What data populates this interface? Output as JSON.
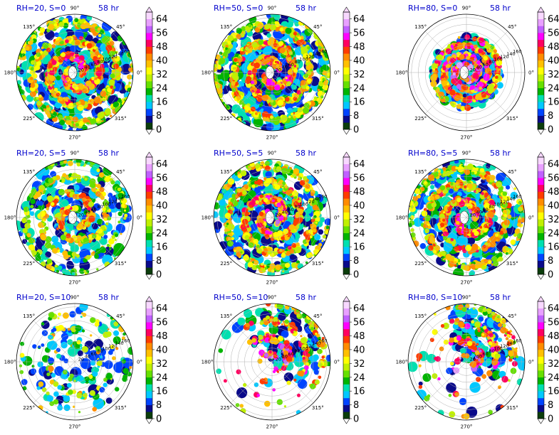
{
  "chart_data": {
    "type": "heatmap",
    "projection": "polar",
    "layout": "3x3 grid of panels",
    "time_label": "58 hr",
    "angle_ticks": [
      "0°",
      "45°",
      "90°",
      "135°",
      "180°",
      "225°",
      "270°",
      "315°"
    ],
    "radial_ticks": [
      20,
      40,
      60,
      80,
      100,
      120,
      140,
      160
    ],
    "radial_max": 170,
    "grid": true,
    "colorbar": {
      "ticks": [
        0,
        8,
        16,
        24,
        32,
        40,
        48,
        56,
        64
      ],
      "min": 0,
      "max": 68,
      "extend": "both",
      "colors": [
        "#0b3d0b",
        "#0a0a8a",
        "#0044ff",
        "#00c8ff",
        "#00e0b0",
        "#00b400",
        "#66e000",
        "#c0f000",
        "#ffff00",
        "#ffc000",
        "#ff8c00",
        "#ff3c00",
        "#ff0060",
        "#ff00ff",
        "#c060ff",
        "#e8a0ff",
        "#f8d8ff"
      ]
    },
    "panels": [
      {
        "title": "RH=20, S=0",
        "rh": 20,
        "s": 0,
        "coverage": "full",
        "intensity": "high"
      },
      {
        "title": "RH=50, S=0",
        "rh": 50,
        "s": 0,
        "coverage": "full",
        "intensity": "high"
      },
      {
        "title": "RH=80, S=0",
        "rh": 80,
        "s": 0,
        "coverage": "compact inner core",
        "intensity": "very high"
      },
      {
        "title": "RH=20, S=5",
        "rh": 20,
        "s": 5,
        "coverage": "partial",
        "intensity": "moderate"
      },
      {
        "title": "RH=50, S=5",
        "rh": 50,
        "s": 5,
        "coverage": "broad",
        "intensity": "high"
      },
      {
        "title": "RH=80, S=5",
        "rh": 80,
        "s": 5,
        "coverage": "broad",
        "intensity": "high"
      },
      {
        "title": "RH=20, S=10",
        "rh": 20,
        "s": 10,
        "coverage": "sparse",
        "intensity": "low"
      },
      {
        "title": "RH=50, S=10",
        "rh": 50,
        "s": 10,
        "coverage": "north-east sector",
        "intensity": "high"
      },
      {
        "title": "RH=80, S=10",
        "rh": 80,
        "s": 10,
        "coverage": "north-east sector",
        "intensity": "high"
      }
    ]
  }
}
